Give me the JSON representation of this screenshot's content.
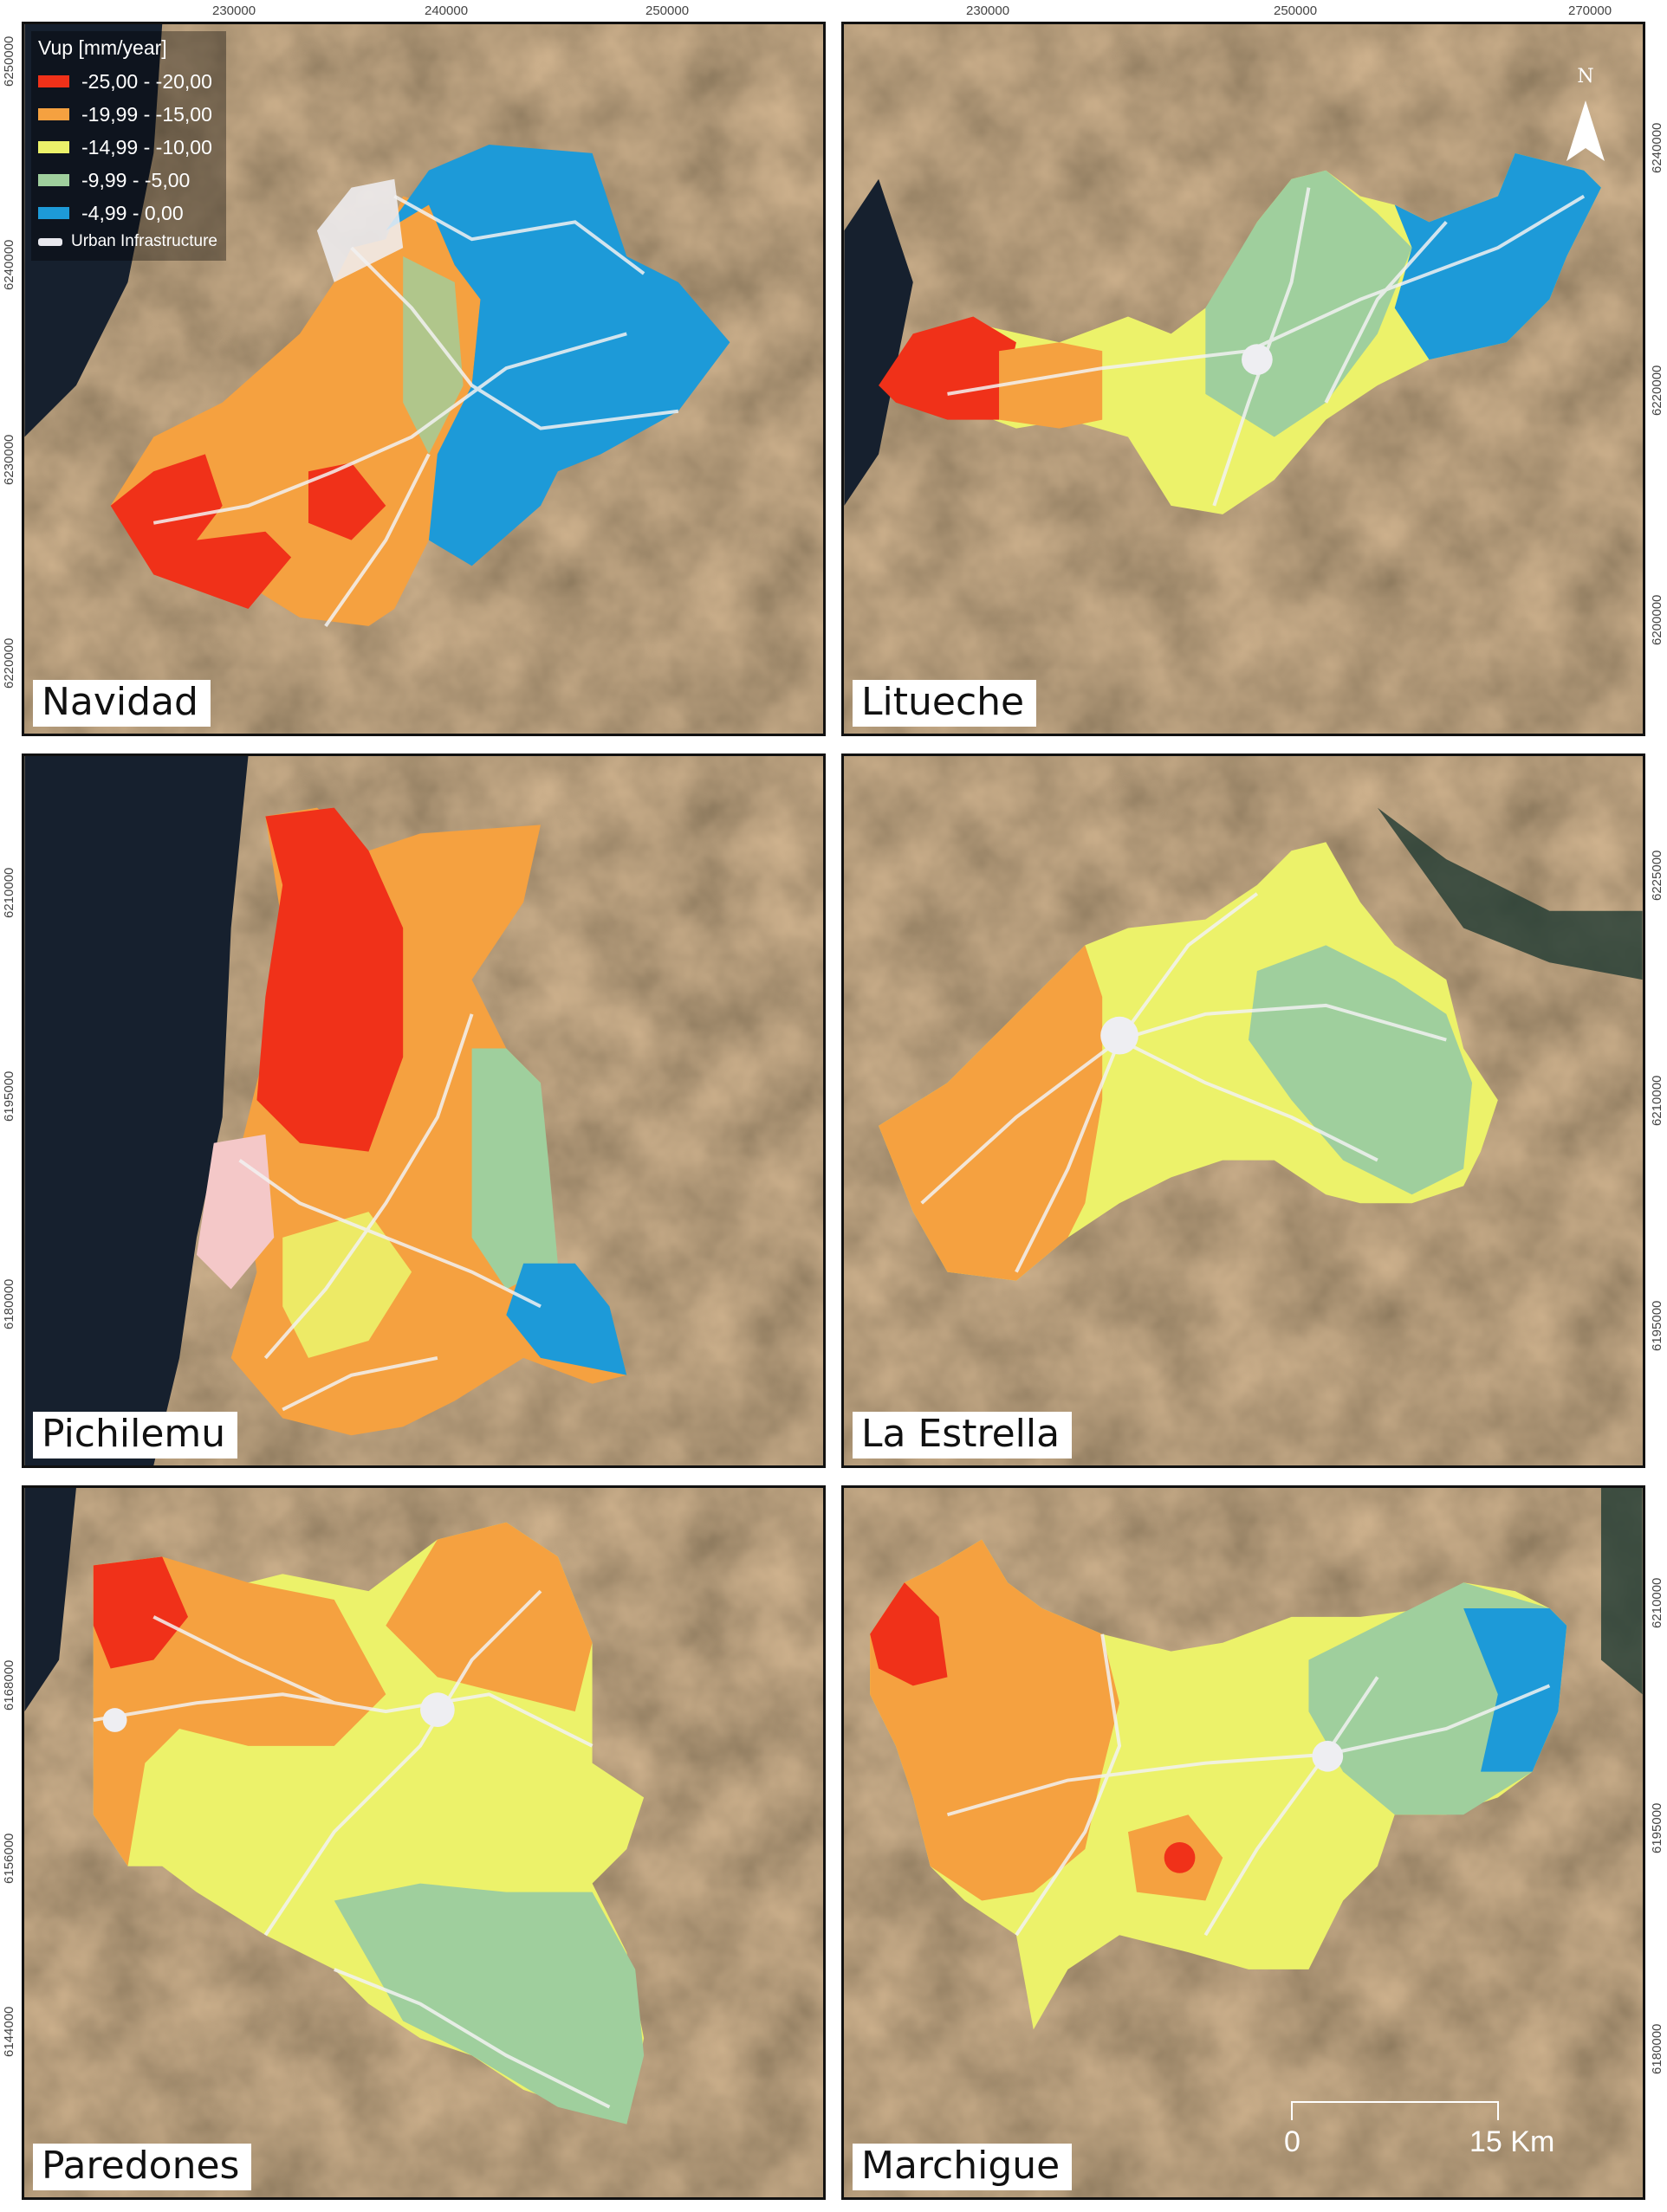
{
  "legend": {
    "title": "Vup [mm/year]",
    "classes": [
      {
        "label": "-25,00 - -20,00",
        "color": "#f03119"
      },
      {
        "label": "-19,99 - -15,00",
        "color": "#f5a140"
      },
      {
        "label": "-14,99 - -10,00",
        "color": "#ecf26a"
      },
      {
        "label": "-9,99 - -5,00",
        "color": "#9fcf9d"
      },
      {
        "label": "-4,99 - 0,00",
        "color": "#1d9ad8"
      }
    ],
    "urban_label": "Urban Infrastructure",
    "urban_color": "#e8e8ee"
  },
  "north_arrow": {
    "label": "N",
    "icon": "north-arrow-icon"
  },
  "scale_bar": {
    "start_label": "0",
    "end_label": "15 Km"
  },
  "panels": [
    {
      "name": "Navidad",
      "x_ticks": [
        "230000",
        "240000",
        "250000"
      ],
      "y_ticks": [
        "6250000",
        "6240000",
        "6230000",
        "6220000"
      ]
    },
    {
      "name": "Litueche",
      "x_ticks": [
        "230000",
        "250000",
        "270000"
      ],
      "y_ticks": [
        "6240000",
        "6220000",
        "6200000"
      ]
    },
    {
      "name": "Pichilemu",
      "y_ticks": [
        "6210000",
        "6195000",
        "6180000"
      ]
    },
    {
      "name": "La Estrella",
      "y_ticks": [
        "6225000",
        "6210000",
        "6195000"
      ]
    },
    {
      "name": "Paredones",
      "y_ticks": [
        "6168000",
        "6156000",
        "6144000"
      ]
    },
    {
      "name": "Marchigue",
      "y_ticks": [
        "6210000",
        "6195000",
        "6180000"
      ]
    }
  ]
}
